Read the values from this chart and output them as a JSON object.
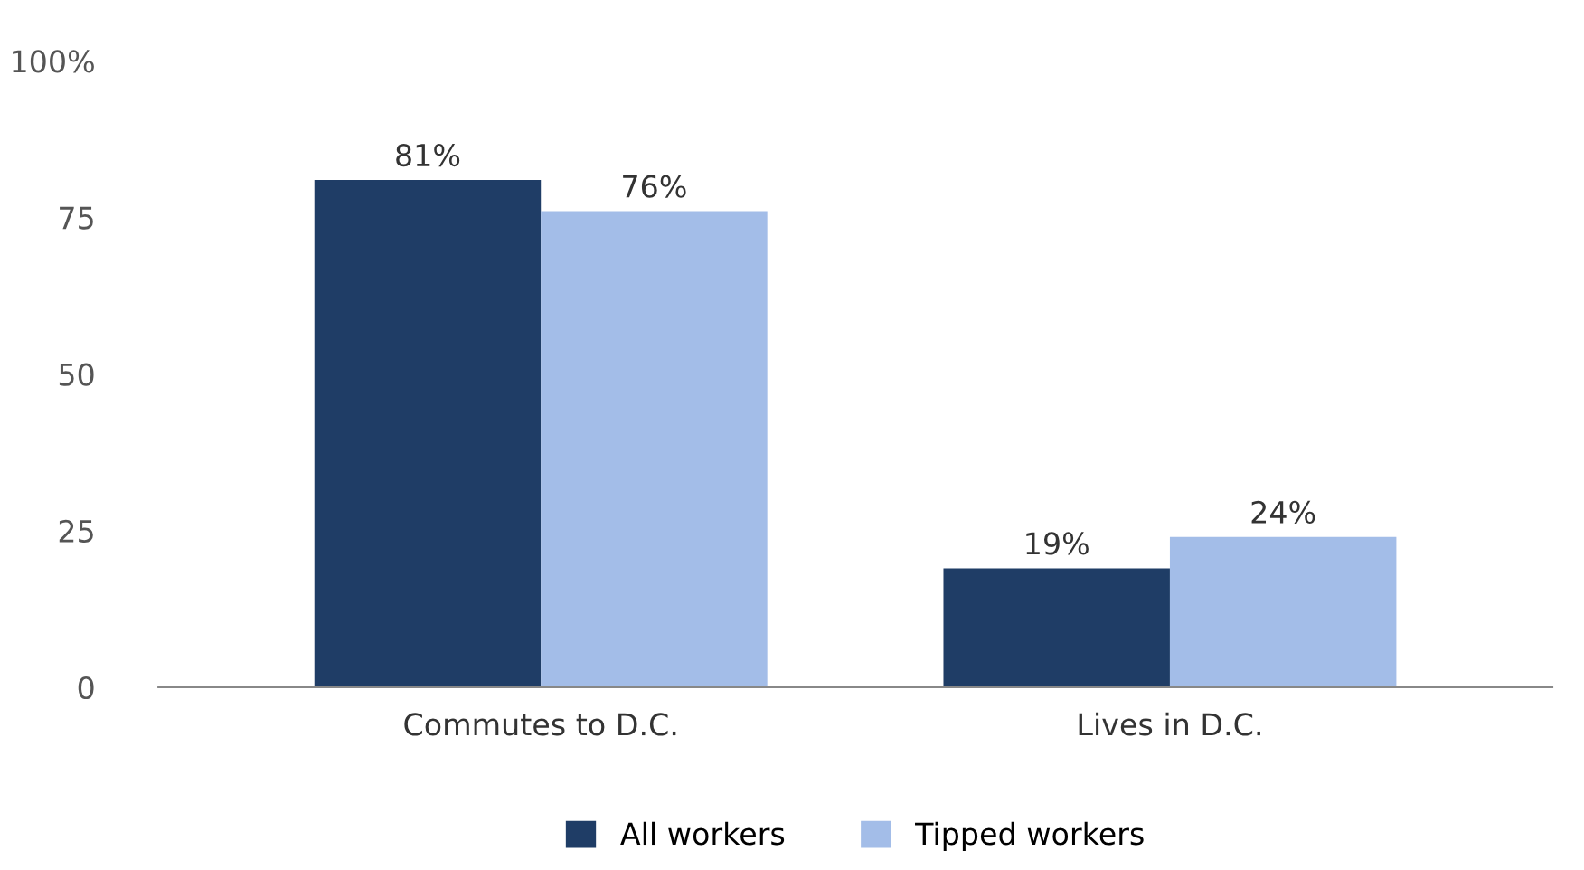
{
  "chart_data": {
    "type": "bar",
    "categories": [
      "Commutes to D.C.",
      "Lives in D.C."
    ],
    "series": [
      {
        "name": "All workers",
        "color": "#1f3d66",
        "values": [
          81,
          19
        ],
        "value_labels": [
          "81%",
          "19%"
        ]
      },
      {
        "name": "Tipped workers",
        "color": "#a3bde8",
        "values": [
          76,
          24
        ],
        "value_labels": [
          "76%",
          "24%"
        ]
      }
    ],
    "ylim": [
      0,
      100
    ],
    "yticks": [
      0,
      25,
      50,
      75,
      {
        "value": 100,
        "label": "100%"
      }
    ],
    "grid": false,
    "legend": "bottom"
  }
}
